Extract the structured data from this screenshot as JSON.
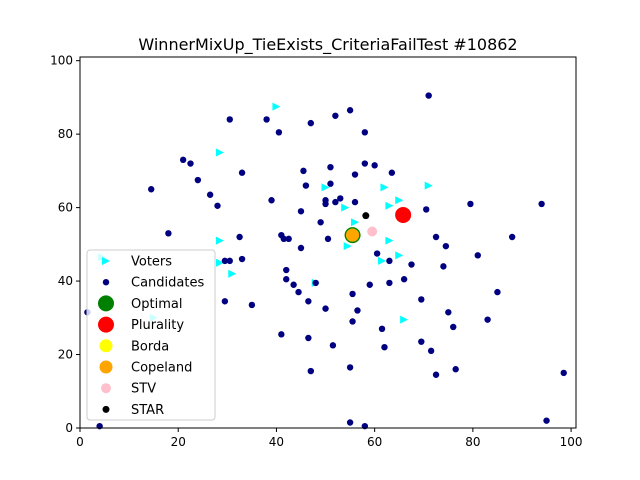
{
  "chart_data": {
    "type": "scatter",
    "title": "WinnerMixUp_TieExists_CriteriaFailTest #10862",
    "xlabel": "",
    "ylabel": "",
    "xlim": [
      0,
      101
    ],
    "ylim": [
      0,
      101
    ],
    "xticks": [
      0,
      20,
      40,
      60,
      80,
      100
    ],
    "yticks": [
      0,
      20,
      40,
      60,
      80,
      100
    ],
    "grid": false,
    "legend_position": "lower-left",
    "series": [
      {
        "name": "Voters",
        "marker": "triangle-right",
        "color": "#00ffff",
        "points": [
          [
            40,
            87.5
          ],
          [
            28.5,
            75
          ],
          [
            50,
            65.5
          ],
          [
            62,
            65.5
          ],
          [
            71,
            66
          ],
          [
            63,
            60.5
          ],
          [
            65,
            62
          ],
          [
            54,
            60
          ],
          [
            56,
            56
          ],
          [
            28.5,
            51
          ],
          [
            54.5,
            49.5
          ],
          [
            63,
            51
          ],
          [
            61.5,
            45.5
          ],
          [
            65,
            47
          ],
          [
            28.5,
            45
          ],
          [
            31,
            42
          ],
          [
            48,
            39.5
          ],
          [
            66,
            29.5
          ],
          [
            4.5,
            46.5
          ],
          [
            15,
            30
          ]
        ]
      },
      {
        "name": "Candidates",
        "marker": "circle",
        "color": "#000080",
        "points": [
          [
            71,
            90.5
          ],
          [
            55,
            86.5
          ],
          [
            38,
            84
          ],
          [
            47,
            83
          ],
          [
            52,
            85
          ],
          [
            30.5,
            84
          ],
          [
            40.5,
            80.5
          ],
          [
            58,
            80.5
          ],
          [
            21,
            73
          ],
          [
            22.5,
            72
          ],
          [
            14.5,
            65
          ],
          [
            24,
            67.5
          ],
          [
            26.5,
            63.5
          ],
          [
            28,
            60.5
          ],
          [
            33,
            69.5
          ],
          [
            45.5,
            70
          ],
          [
            51,
            71
          ],
          [
            58,
            72
          ],
          [
            60,
            71.5
          ],
          [
            56,
            69
          ],
          [
            63.5,
            69.5
          ],
          [
            46,
            66
          ],
          [
            51,
            66.5
          ],
          [
            53,
            62.5
          ],
          [
            50,
            62
          ],
          [
            50,
            61
          ],
          [
            52,
            61.5
          ],
          [
            56,
            61.5
          ],
          [
            45,
            59
          ],
          [
            39,
            62
          ],
          [
            49,
            56
          ],
          [
            70.5,
            59.5
          ],
          [
            79.5,
            61
          ],
          [
            94,
            61
          ],
          [
            18,
            53
          ],
          [
            32.5,
            52
          ],
          [
            41,
            52.5
          ],
          [
            41.5,
            51.5
          ],
          [
            42.5,
            51.5
          ],
          [
            50.5,
            51.5
          ],
          [
            72.5,
            52
          ],
          [
            74.5,
            49.5
          ],
          [
            81,
            47
          ],
          [
            88,
            52
          ],
          [
            45,
            49
          ],
          [
            60.5,
            47.5
          ],
          [
            63,
            45.5
          ],
          [
            67.5,
            44.5
          ],
          [
            74,
            44
          ],
          [
            29.5,
            45.5
          ],
          [
            30.5,
            45.5
          ],
          [
            33,
            46
          ],
          [
            42,
            43
          ],
          [
            42,
            40.5
          ],
          [
            66,
            40.5
          ],
          [
            59,
            39
          ],
          [
            63,
            39.5
          ],
          [
            48,
            39.5
          ],
          [
            43.5,
            39
          ],
          [
            44.5,
            37
          ],
          [
            55.5,
            36.5
          ],
          [
            69.5,
            35
          ],
          [
            85,
            37
          ],
          [
            35,
            33.5
          ],
          [
            29.5,
            34.5
          ],
          [
            46.5,
            34.5
          ],
          [
            50,
            32.5
          ],
          [
            56.5,
            32
          ],
          [
            75,
            31.5
          ],
          [
            83,
            29.5
          ],
          [
            55.5,
            29
          ],
          [
            61.5,
            27
          ],
          [
            76,
            27.5
          ],
          [
            41,
            25.5
          ],
          [
            46.5,
            24.5
          ],
          [
            51.5,
            22.5
          ],
          [
            62,
            22
          ],
          [
            69.5,
            23.5
          ],
          [
            71.5,
            21
          ],
          [
            55,
            16.5
          ],
          [
            47,
            15.5
          ],
          [
            72.5,
            14.5
          ],
          [
            76.5,
            16
          ],
          [
            98.5,
            15
          ],
          [
            1.5,
            31.5
          ],
          [
            4,
            0.5
          ],
          [
            55,
            1.5
          ],
          [
            58,
            0.5
          ],
          [
            95,
            2
          ]
        ]
      },
      {
        "name": "Optimal",
        "marker": "circle",
        "color": "#008000",
        "points": [
          [
            55.5,
            52.5
          ]
        ]
      },
      {
        "name": "Plurality",
        "marker": "circle",
        "color": "#ff0000",
        "points": [
          [
            65.8,
            58
          ]
        ]
      },
      {
        "name": "Borda",
        "marker": "circle",
        "color": "#ffff00",
        "points": [
          [
            55.5,
            52.5
          ]
        ]
      },
      {
        "name": "Copeland",
        "marker": "circle",
        "color": "#ffa500",
        "points": [
          [
            55.5,
            52.5
          ]
        ]
      },
      {
        "name": "STV",
        "marker": "circle",
        "color": "#ffc0cb",
        "points": [
          [
            59.5,
            53.5
          ]
        ]
      },
      {
        "name": "STAR",
        "marker": "circle",
        "color": "#000000",
        "points": [
          [
            58.2,
            57.8
          ]
        ]
      }
    ]
  }
}
